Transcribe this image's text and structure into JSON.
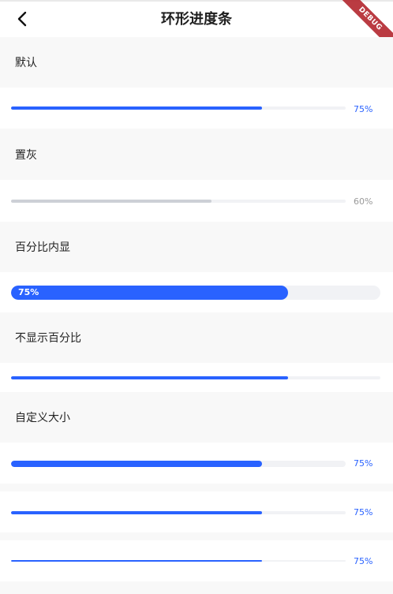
{
  "header": {
    "title": "环形进度条",
    "debug_label": "DEBUG"
  },
  "sections": {
    "default": {
      "title": "默认",
      "value": 0.75,
      "label": "75%"
    },
    "gray": {
      "title": "置灰",
      "value": 0.6,
      "label": "60%"
    },
    "inner": {
      "title": "百分比内显",
      "value": 0.75,
      "label": "75%"
    },
    "hidden": {
      "title": "不显示百分比",
      "value": 0.75
    },
    "custom": {
      "title": "自定义大小",
      "bars": [
        {
          "value": 0.75,
          "label": "75%"
        },
        {
          "value": 0.75,
          "label": "75%"
        },
        {
          "value": 0.75,
          "label": "75%"
        }
      ]
    }
  },
  "colors": {
    "accent": "#2962ff",
    "track": "#f1f2f5",
    "disabled": "#cdd0d6",
    "section_bg": "#f8f8f8"
  }
}
